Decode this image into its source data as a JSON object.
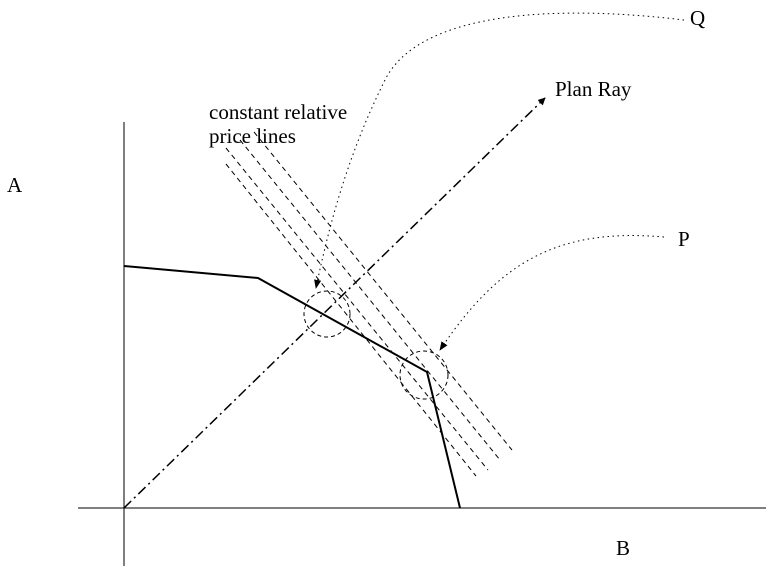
{
  "labels": {
    "axis_a": "A",
    "axis_b": "B",
    "point_q": "Q",
    "point_p": "P",
    "plan_ray": "Plan Ray",
    "price_lines_1": "constant relative",
    "price_lines_2": "price lines"
  },
  "colors": {
    "ink": "#000000",
    "background": "#ffffff"
  }
}
